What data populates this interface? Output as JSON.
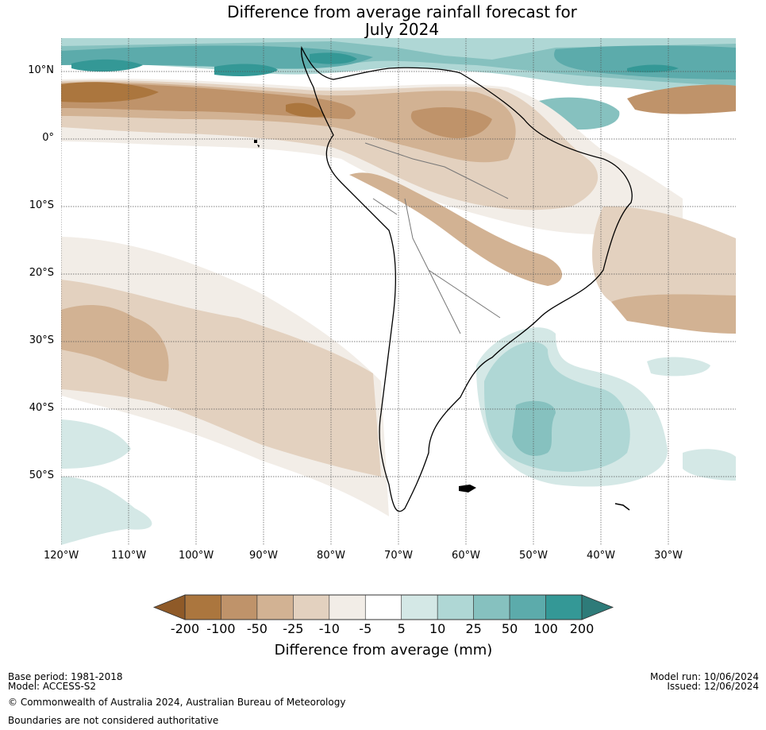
{
  "title": {
    "line1": "Difference from average rainfall forecast for",
    "line2": "July 2024"
  },
  "map": {
    "lon_range": [
      -120,
      -25
    ],
    "lat_range": [
      15,
      -60
    ],
    "lon_ticks": [
      {
        "value": -120,
        "label": "120°W"
      },
      {
        "value": -110,
        "label": "110°W"
      },
      {
        "value": -100,
        "label": "100°W"
      },
      {
        "value": -90,
        "label": "90°W"
      },
      {
        "value": -80,
        "label": "80°W"
      },
      {
        "value": -70,
        "label": "70°W"
      },
      {
        "value": -60,
        "label": "60°W"
      },
      {
        "value": -50,
        "label": "50°W"
      },
      {
        "value": -40,
        "label": "40°W"
      },
      {
        "value": -30,
        "label": "30°W"
      }
    ],
    "lat_ticks": [
      {
        "value": 10,
        "label": "10°N"
      },
      {
        "value": 0,
        "label": "0°"
      },
      {
        "value": -10,
        "label": "10°S"
      },
      {
        "value": -20,
        "label": "20°S"
      },
      {
        "value": -30,
        "label": "30°S"
      },
      {
        "value": -40,
        "label": "40°S"
      },
      {
        "value": -50,
        "label": "50°S"
      }
    ],
    "gridlines": true
  },
  "colorbar": {
    "title": "Difference from average (mm)",
    "extend": "both",
    "low_extend_color": "#8f5a28",
    "high_extend_color": "#2e7b79",
    "bins": [
      {
        "from": -200,
        "to": -100,
        "color": "#ab763e"
      },
      {
        "from": -100,
        "to": -50,
        "color": "#bf936a"
      },
      {
        "from": -50,
        "to": -25,
        "color": "#d2b293"
      },
      {
        "from": -25,
        "to": -10,
        "color": "#e3d1bf"
      },
      {
        "from": -10,
        "to": -5,
        "color": "#f2ede7"
      },
      {
        "from": -5,
        "to": 5,
        "color": "#ffffff"
      },
      {
        "from": 5,
        "to": 10,
        "color": "#d4e8e6"
      },
      {
        "from": 10,
        "to": 25,
        "color": "#afd7d5"
      },
      {
        "from": 25,
        "to": 50,
        "color": "#86c1bf"
      },
      {
        "from": 50,
        "to": 100,
        "color": "#5cabab"
      },
      {
        "from": 100,
        "to": 200,
        "color": "#349896"
      }
    ],
    "tick_labels": [
      "-200",
      "-100",
      "-50",
      "-25",
      "-10",
      "-5",
      "5",
      "10",
      "25",
      "50",
      "100",
      "200"
    ]
  },
  "footer": {
    "base_period": "Base period: 1981-2018",
    "model": "Model: ACCESS-S2",
    "copyright": "© Commonwealth of Australia 2024, Australian Bureau of Meteorology",
    "boundaries_note": "Boundaries are not considered authoritative",
    "model_run": "Model run: 10/06/2024",
    "issued": "Issued: 12/06/2024"
  }
}
